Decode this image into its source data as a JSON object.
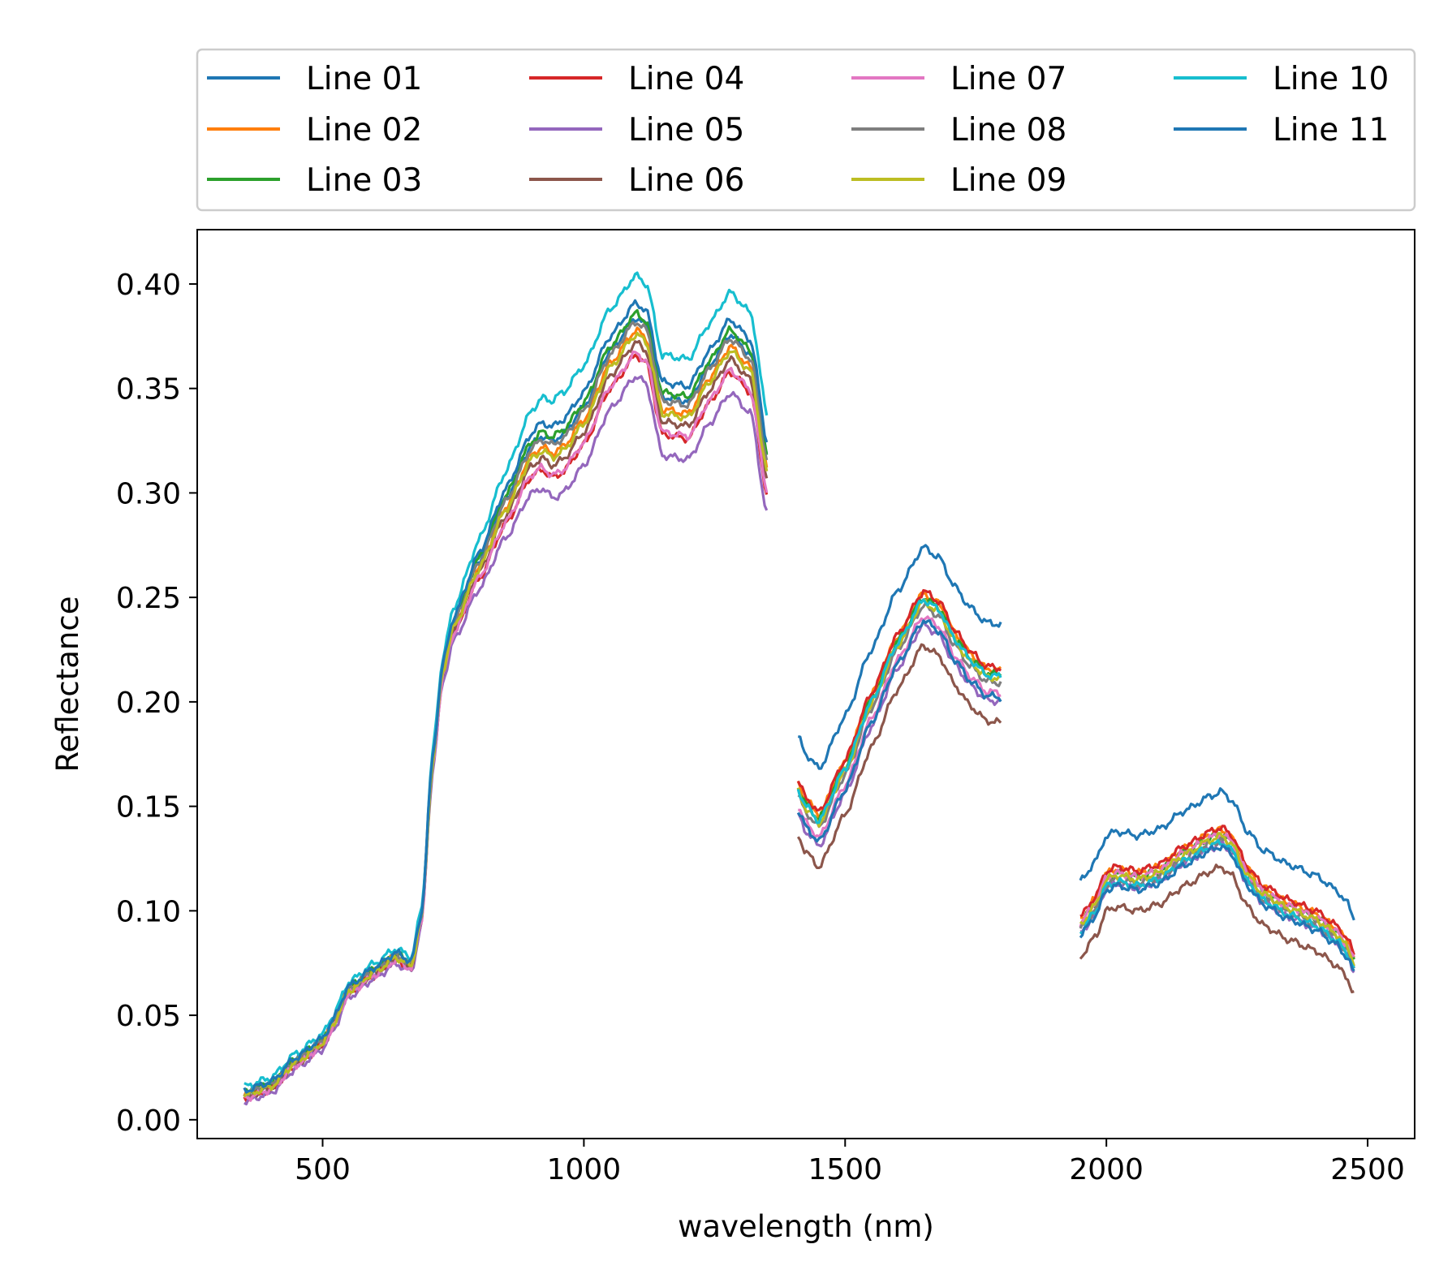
{
  "chart_data": {
    "type": "line",
    "title": "",
    "xlabel": "wavelength (nm)",
    "ylabel": "Reflectance",
    "xlim": [
      260,
      2590
    ],
    "ylim": [
      -0.009,
      0.426
    ],
    "xticks": [
      500,
      1000,
      1500,
      2000,
      2500
    ],
    "xtick_labels": [
      "500",
      "1000",
      "1500",
      "2000",
      "2500"
    ],
    "yticks": [
      0.0,
      0.05,
      0.1,
      0.15,
      0.2,
      0.25,
      0.3,
      0.35,
      0.4
    ],
    "ytick_labels": [
      "0.00",
      "0.05",
      "0.10",
      "0.15",
      "0.20",
      "0.25",
      "0.30",
      "0.35",
      "0.40"
    ],
    "grid": false,
    "legend": {
      "placement": "above plot",
      "columns": 4
    },
    "anchor_x": [
      [
        350,
        400,
        450,
        500,
        520,
        550,
        600,
        640,
        670,
        690,
        710,
        730,
        750,
        800,
        850,
        900,
        920,
        940,
        960,
        1000,
        1050,
        1100,
        1120,
        1150,
        1200,
        1240,
        1280,
        1320,
        1350
      ],
      [
        1410,
        1425,
        1450,
        1500,
        1550,
        1600,
        1650,
        1680,
        1710,
        1740,
        1770,
        1800
      ],
      [
        1950,
        1980,
        2000,
        2020,
        2060,
        2100,
        2150,
        2200,
        2220,
        2240,
        2270,
        2300,
        2350,
        2400,
        2440,
        2460,
        2475
      ]
    ],
    "base_profile": [
      [
        0.012,
        0.016,
        0.028,
        0.037,
        0.046,
        0.062,
        0.071,
        0.078,
        0.074,
        0.098,
        0.17,
        0.215,
        0.236,
        0.265,
        0.293,
        0.318,
        0.322,
        0.319,
        0.322,
        0.335,
        0.362,
        0.378,
        0.374,
        0.34,
        0.338,
        0.355,
        0.37,
        0.36,
        0.312
      ],
      [
        0.158,
        0.15,
        0.143,
        0.168,
        0.2,
        0.228,
        0.249,
        0.244,
        0.23,
        0.22,
        0.213,
        0.212
      ],
      [
        0.093,
        0.103,
        0.115,
        0.117,
        0.115,
        0.118,
        0.127,
        0.134,
        0.136,
        0.132,
        0.117,
        0.108,
        0.101,
        0.096,
        0.089,
        0.083,
        0.075
      ]
    ],
    "series": [
      {
        "name": "Line 01",
        "color": "#1f77b4",
        "offset": [
          0.006,
          0.025,
          0.021
        ]
      },
      {
        "name": "Line 02",
        "color": "#ff7f0e",
        "offset": [
          0.0,
          0.003,
          0.003
        ]
      },
      {
        "name": "Line 03",
        "color": "#2ca02c",
        "offset": [
          0.008,
          0.001,
          0.001
        ]
      },
      {
        "name": "Line 04",
        "color": "#d62728",
        "offset": [
          -0.012,
          0.004,
          0.004
        ]
      },
      {
        "name": "Line 05",
        "color": "#9467bd",
        "offset": [
          -0.022,
          -0.012,
          -0.004
        ]
      },
      {
        "name": "Line 06",
        "color": "#8c564b",
        "offset": [
          -0.006,
          -0.022,
          -0.015
        ]
      },
      {
        "name": "Line 07",
        "color": "#e377c2",
        "offset": [
          -0.011,
          -0.008,
          0.001
        ]
      },
      {
        "name": "Line 08",
        "color": "#7f7f7f",
        "offset": [
          0.004,
          -0.003,
          -0.002
        ]
      },
      {
        "name": "Line 09",
        "color": "#bcbd22",
        "offset": [
          -0.002,
          -0.001,
          0.0
        ]
      },
      {
        "name": "Line 10",
        "color": "#17becf",
        "offset": [
          0.026,
          0.0,
          -0.003
        ]
      },
      {
        "name": "Line 11",
        "color": "#1f77b4",
        "offset": [
          0.013,
          -0.01,
          -0.005
        ]
      }
    ]
  }
}
